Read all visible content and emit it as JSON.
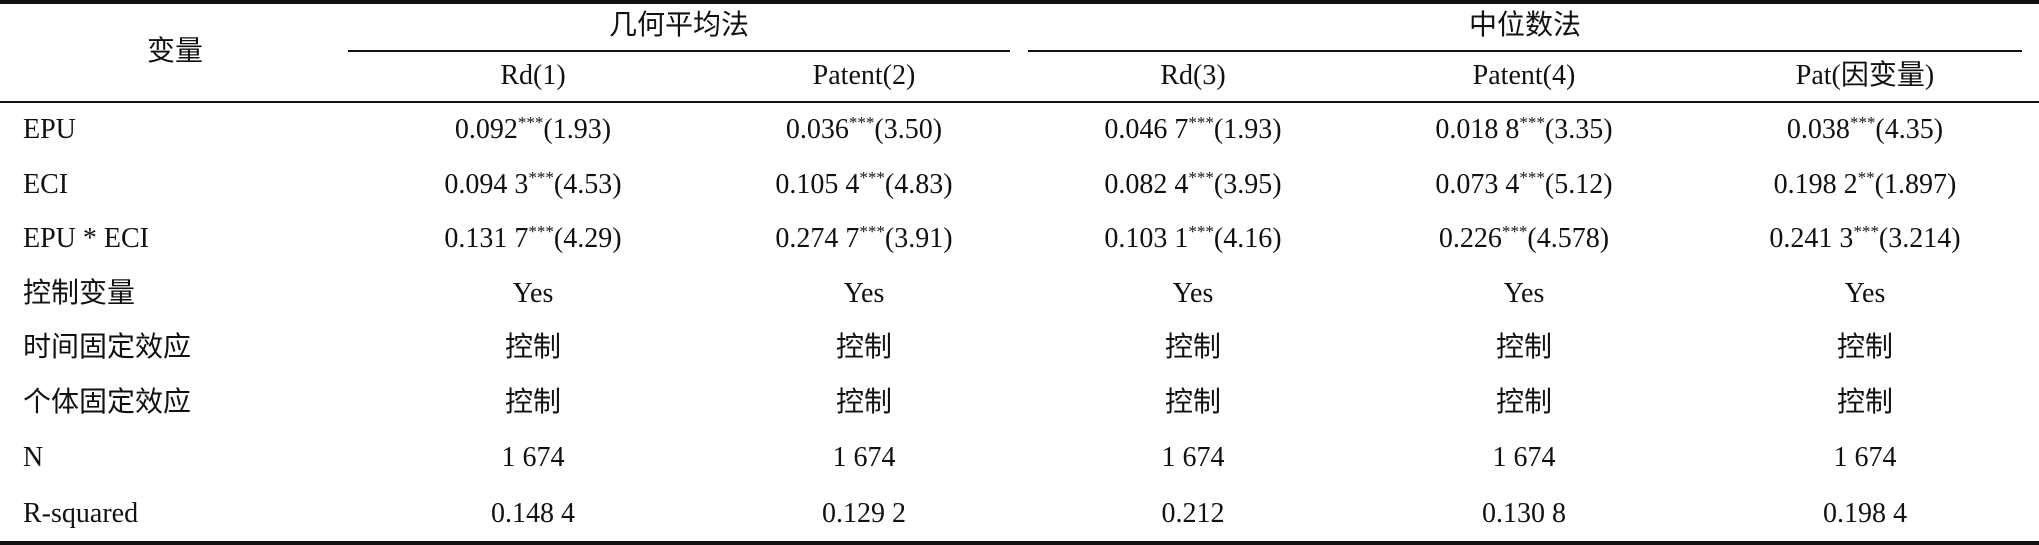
{
  "table": {
    "stub_header": "变量",
    "groups": [
      {
        "title": "几何平均法",
        "columns": [
          "Rd(1)",
          "Patent(2)"
        ]
      },
      {
        "title": "中位数法",
        "columns": [
          "Rd(3)",
          "Patent(4)",
          "Pat(因变量)"
        ]
      }
    ],
    "rows": [
      {
        "label": "EPU",
        "cells": [
          {
            "value": "0.092",
            "stars": "***",
            "paren": "(1.93)"
          },
          {
            "value": "0.036",
            "stars": "***",
            "paren": "(3.50)"
          },
          {
            "value": "0.046 7",
            "stars": "***",
            "paren": "(1.93)"
          },
          {
            "value": "0.018 8",
            "stars": "***",
            "paren": "(3.35)"
          },
          {
            "value": "0.038",
            "stars": "***",
            "paren": "(4.35)"
          }
        ]
      },
      {
        "label": "ECI",
        "cells": [
          {
            "value": "0.094 3",
            "stars": "***",
            "paren": "(4.53)"
          },
          {
            "value": "0.105 4",
            "stars": "***",
            "paren": "(4.83)"
          },
          {
            "value": "0.082 4",
            "stars": "***",
            "paren": "(3.95)"
          },
          {
            "value": "0.073 4",
            "stars": "***",
            "paren": "(5.12)"
          },
          {
            "value": "0.198 2",
            "stars": "**",
            "paren": "(1.897)"
          }
        ]
      },
      {
        "label": "EPU * ECI",
        "cells": [
          {
            "value": "0.131 7",
            "stars": "***",
            "paren": "(4.29)"
          },
          {
            "value": "0.274 7",
            "stars": "***",
            "paren": "(3.91)"
          },
          {
            "value": "0.103 1",
            "stars": "***",
            "paren": "(4.16)"
          },
          {
            "value": "0.226",
            "stars": "***",
            "paren": "(4.578)"
          },
          {
            "value": "0.241 3",
            "stars": "***",
            "paren": "(3.214)"
          }
        ]
      },
      {
        "label": "控制变量",
        "cells": [
          "Yes",
          "Yes",
          "Yes",
          "Yes",
          "Yes"
        ]
      },
      {
        "label": "时间固定效应",
        "cells": [
          "控制",
          "控制",
          "控制",
          "控制",
          "控制"
        ]
      },
      {
        "label": "个体固定效应",
        "cells": [
          "控制",
          "控制",
          "控制",
          "控制",
          "控制"
        ]
      },
      {
        "label": "N",
        "cells": [
          "1 674",
          "1 674",
          "1 674",
          "1 674",
          "1 674"
        ]
      },
      {
        "label": "R-squared",
        "cells": [
          "0.148 4",
          "0.129 2",
          "0.212",
          "0.130 8",
          "0.198 4"
        ]
      }
    ]
  }
}
